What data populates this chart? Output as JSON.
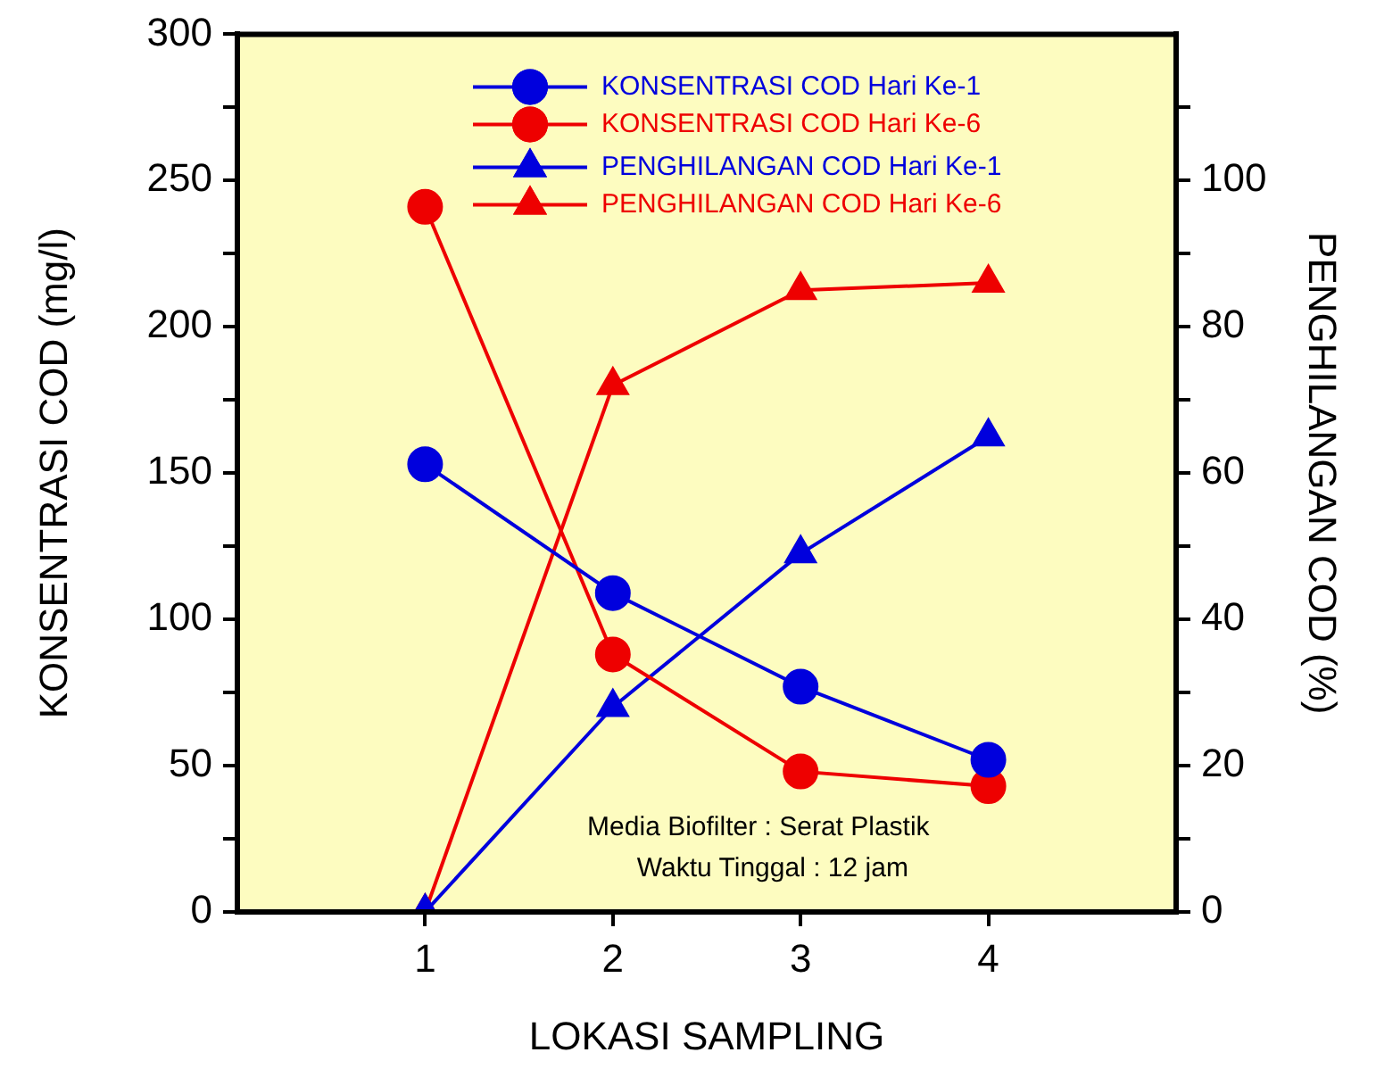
{
  "chart_data": {
    "type": "line",
    "x": [
      1,
      2,
      3,
      4
    ],
    "xlabel": "LOKASI SAMPLING",
    "ylabel": "KONSENTRASI COD (mg/l)",
    "y2label": "PENGHILANGAN COD (%)",
    "xlim": [
      0,
      5
    ],
    "xticks": [
      1,
      2,
      3,
      4
    ],
    "ylim": [
      0,
      300
    ],
    "yticks": [
      0,
      {
        "value": 25,
        "label": null
      },
      50,
      {
        "value": 75,
        "label": null
      },
      100,
      {
        "value": 125,
        "label": null
      },
      150,
      {
        "value": 175,
        "label": null
      },
      200,
      {
        "value": 225,
        "label": null
      },
      250,
      {
        "value": 275,
        "label": null
      },
      300
    ],
    "y2lim": [
      0,
      120
    ],
    "y2ticks": [
      0,
      {
        "value": 10,
        "label": null
      },
      20,
      {
        "value": 30,
        "label": null
      },
      40,
      {
        "value": 50,
        "label": null
      },
      60,
      {
        "value": 70,
        "label": null
      },
      80,
      {
        "value": 90,
        "label": null
      },
      100,
      {
        "value": 110,
        "label": null
      }
    ],
    "legend": "top",
    "grid": false,
    "line_style": "solid",
    "series": [
      {
        "name": "KONSENTRASI COD Hari Ke-1",
        "color": "#0000dd",
        "marker": "circle",
        "values": [
          153,
          109,
          77,
          52
        ]
      },
      {
        "name": "KONSENTRASI COD Hari Ke-6",
        "color": "#ee0000",
        "marker": "circle",
        "values": [
          241,
          88,
          48,
          43
        ]
      },
      {
        "name": "PENGHILANGAN COD Hari Ke-1",
        "color": "#0000dd",
        "marker": "triangle",
        "axis": "y2",
        "values": [
          0,
          28,
          49,
          65
        ]
      },
      {
        "name": "PENGHILANGAN COD Hari Ke-6",
        "color": "#ee0000",
        "marker": "triangle",
        "axis": "y2",
        "values": [
          0,
          72,
          85,
          86
        ]
      }
    ],
    "annotations": [
      "Media Biofilter : Serat Plastik",
      "Waktu Tinggal : 12 jam"
    ]
  }
}
